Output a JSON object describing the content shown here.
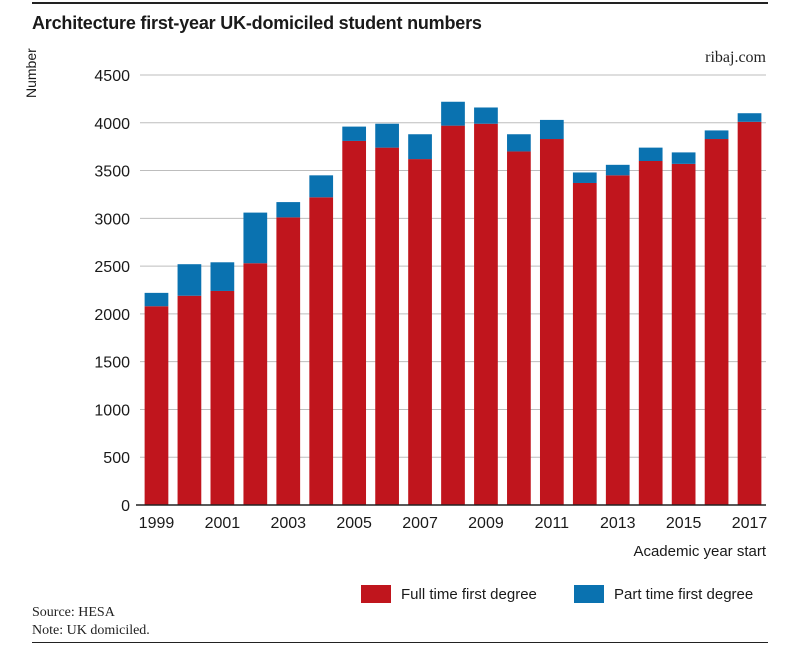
{
  "header": {
    "title": "Architecture first-year UK-domiciled student numbers",
    "publisher": "ribaj.com"
  },
  "footer": {
    "source": "Source: HESA",
    "note": "Note: UK domiciled."
  },
  "colors": {
    "full_time": "#c0151d",
    "part_time": "#0a72b0",
    "grid": "#bdbdbd",
    "axis": "#222222"
  },
  "chart_data": {
    "type": "bar",
    "stacked": true,
    "title": "Architecture first-year UK-domiciled student numbers",
    "xlabel": "Academic year start",
    "ylabel": "Number",
    "ylim": [
      0,
      4500
    ],
    "yticks": [
      0,
      500,
      1000,
      1500,
      2000,
      2500,
      3000,
      3500,
      4000,
      4500
    ],
    "grid": true,
    "legend": "bottom-right",
    "categories": [
      "1999",
      "2000",
      "2001",
      "2002",
      "2003",
      "2004",
      "2005",
      "2006",
      "2007",
      "2008",
      "2009",
      "2010",
      "2011",
      "2012",
      "2013",
      "2014",
      "2015",
      "2016",
      "2017"
    ],
    "xtick_labels": [
      "1999",
      "2001",
      "2003",
      "2005",
      "2007",
      "2009",
      "2011",
      "2013",
      "2015",
      "2017"
    ],
    "series": [
      {
        "name": "Full time first degree",
        "values": [
          2080,
          2190,
          2240,
          2530,
          3010,
          3220,
          3810,
          3740,
          3620,
          3970,
          3990,
          3700,
          3830,
          3370,
          3450,
          3600,
          3570,
          3830,
          4010
        ]
      },
      {
        "name": "Part time first degree",
        "values": [
          140,
          330,
          300,
          530,
          160,
          230,
          150,
          250,
          260,
          250,
          170,
          180,
          200,
          110,
          110,
          140,
          120,
          90,
          90
        ]
      }
    ]
  }
}
